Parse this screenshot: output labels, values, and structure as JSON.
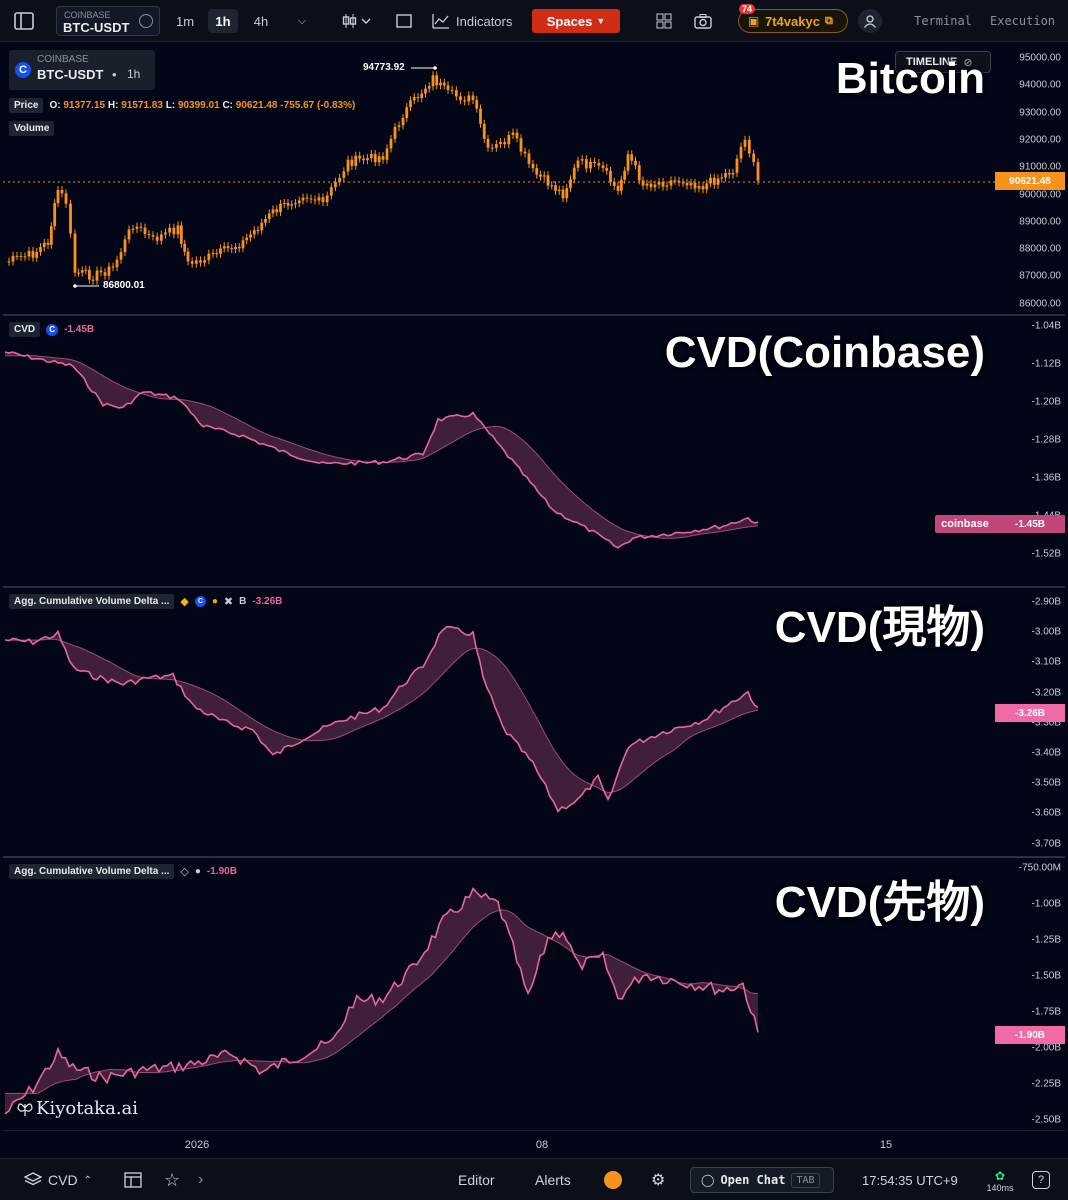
{
  "toolbar": {
    "exchange": "COINBASE",
    "pair": "BTC-USDT",
    "intervals": [
      "1m",
      "1h",
      "4h"
    ],
    "active_interval": "1h",
    "indicators_label": "Indicators",
    "spaces_label": "Spaces",
    "username": "7t4vakyc",
    "notification_count": "74",
    "terminal_label": "Terminal",
    "execution_label": "Execution"
  },
  "price_pane": {
    "exchange": "COINBASE",
    "pair": "BTC-USDT",
    "interval": "1h",
    "title_overlay": "Bitcoin",
    "timeline_label": "TIMELINE",
    "price_label": "Price",
    "ohlc": {
      "o_label": "O:",
      "o": "91377.15",
      "h_label": "H:",
      "h": "91571.83",
      "l_label": "L:",
      "l": "90399.01",
      "c_label": "C:",
      "c": "90621.48",
      "change": "-755.67",
      "change_pct": "(-0.83%)"
    },
    "volume_label": "Volume",
    "high_marker": "94773.92",
    "low_marker": "86800.01",
    "last_price_tag": "90621.48",
    "axis_ticks": [
      "95000.00",
      "94000.00",
      "93000.00",
      "92000.00",
      "91000.00",
      "90000.00",
      "89000.00",
      "88000.00",
      "87000.00",
      "86000.00"
    ],
    "color": "#f7931a"
  },
  "cvd_coinbase": {
    "title_overlay": "CVD(Coinbase)",
    "legend_label": "CVD",
    "legend_value": "-1.45B",
    "axis_ticks": [
      "-1.04B",
      "-1.12B",
      "-1.20B",
      "-1.28B",
      "-1.36B",
      "-1.44B",
      "-1.52B"
    ],
    "series_tag_name": "coinbase",
    "last_value_tag": "-1.45B",
    "line_color": "#e8679b"
  },
  "cvd_spot": {
    "title_overlay": "CVD(現物)",
    "legend_label": "Agg. Cumulative Volume Delta ...",
    "legend_value": "-3.26B",
    "legend_sources": "B",
    "axis_ticks": [
      "-2.90B",
      "-3.00B",
      "-3.10B",
      "-3.20B",
      "-3.30B",
      "-3.40B",
      "-3.50B",
      "-3.60B",
      "-3.70B"
    ],
    "last_value_tag": "-3.26B"
  },
  "cvd_futures": {
    "title_overlay": "CVD(先物)",
    "legend_label": "Agg. Cumulative Volume Delta ...",
    "legend_value": "-1.90B",
    "axis_ticks": [
      "-750.00M",
      "-1.00B",
      "-1.25B",
      "-1.50B",
      "-1.75B",
      "-2.00B",
      "-2.25B",
      "-2.50B"
    ],
    "last_value_tag": "-1.90B",
    "watermark": "Kiyotaka.ai"
  },
  "time_axis": [
    "2026",
    "08",
    "15"
  ],
  "bottom_bar": {
    "layout_name": "CVD",
    "editor_label": "Editor",
    "alerts_label": "Alerts",
    "open_chat_label": "Open Chat",
    "chat_shortcut": "TAB",
    "clock": "17:54:35 UTC+9",
    "latency": "140ms"
  }
}
